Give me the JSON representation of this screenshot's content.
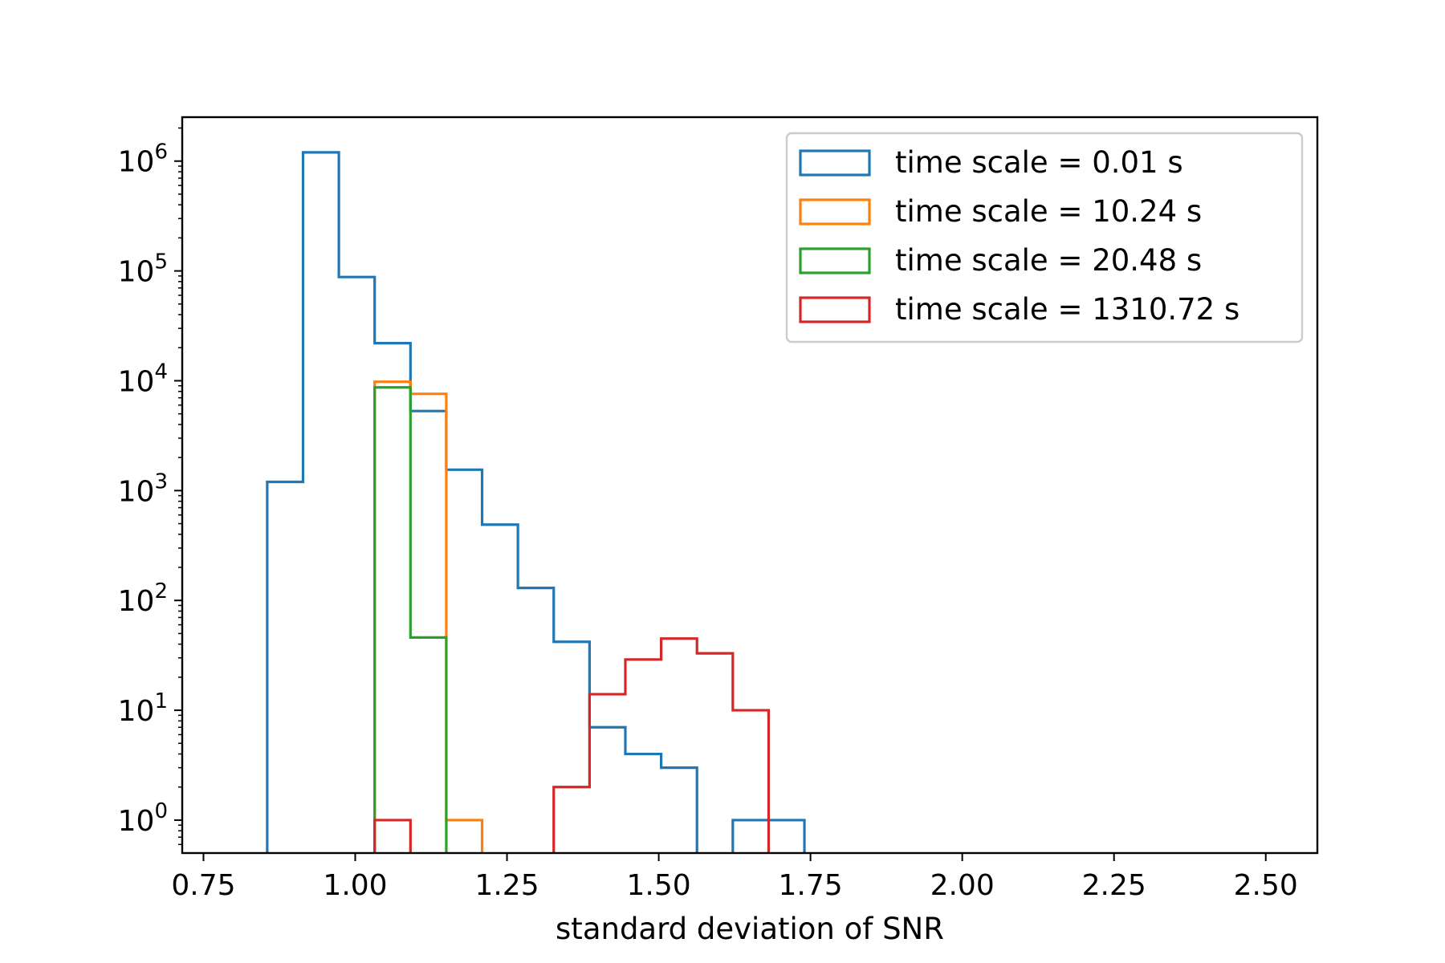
{
  "chart_data": {
    "type": "histogram-step",
    "title": "",
    "xlabel": "standard deviation of SNR",
    "ylabel": "",
    "yscale": "log",
    "xlim": [
      0.715,
      2.585
    ],
    "ylim_log10": [
      -0.3,
      6.4
    ],
    "xticks": [
      0.75,
      1.0,
      1.25,
      1.5,
      1.75,
      2.0,
      2.25,
      2.5
    ],
    "xtick_labels": [
      "0.75",
      "1.00",
      "1.25",
      "1.50",
      "1.75",
      "2.00",
      "2.25",
      "2.50"
    ],
    "yticks_exponents": [
      "0",
      "1",
      "2",
      "3",
      "4",
      "5",
      "6"
    ],
    "ytick_base": "10",
    "legend_position": "top-right",
    "bin_edges": [
      0.855,
      0.914,
      0.973,
      1.032,
      1.091,
      1.15,
      1.209,
      1.268,
      1.327,
      1.386,
      1.445,
      1.504,
      1.563,
      1.622,
      1.681,
      1.74
    ],
    "series": [
      {
        "name": "time scale = 0.01 s",
        "color": "#1f77b4",
        "values": [
          1200,
          1200000,
          88000,
          22000,
          5300,
          1550,
          490,
          130,
          42,
          7,
          4,
          3,
          0,
          1,
          1
        ]
      },
      {
        "name": "time scale = 10.24 s",
        "color": "#ff7f0e",
        "values": [
          0,
          0,
          0,
          9800,
          7600,
          1,
          0,
          0,
          0,
          0,
          0,
          0,
          0,
          0,
          0
        ]
      },
      {
        "name": "time scale = 20.48 s",
        "color": "#2ca02c",
        "values": [
          0,
          0,
          0,
          8700,
          46,
          0,
          0,
          0,
          0,
          0,
          0,
          0,
          0,
          0,
          0
        ]
      },
      {
        "name": "time scale = 1310.72 s",
        "color": "#d62728",
        "values": [
          0,
          0,
          0,
          1,
          0,
          0,
          0,
          0,
          2,
          14,
          29,
          45,
          33,
          10,
          0
        ]
      }
    ]
  }
}
